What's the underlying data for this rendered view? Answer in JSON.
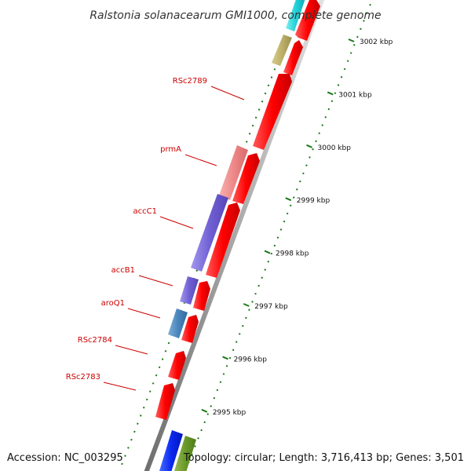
{
  "title": "Ralstonia solanacearum GMI1000, complete genome",
  "footer": {
    "accession": "Accession: NC_003295",
    "topology": "Topology: circular; Length: 3,716,413 bp; Genes: 3,501"
  },
  "colors": {
    "backbone": "#888888",
    "tick": "#1a7a1a",
    "label": "#cc0000",
    "forward_gene": "#ff0000"
  },
  "scale": {
    "unit": "kbp",
    "ticks": [
      {
        "label": "3002 kbp",
        "kbp": 3002
      },
      {
        "label": "3001 kbp",
        "kbp": 3001
      },
      {
        "label": "3000 kbp",
        "kbp": 3000
      },
      {
        "label": "2999 kbp",
        "kbp": 2999
      },
      {
        "label": "2998 kbp",
        "kbp": 2998
      },
      {
        "label": "2997 kbp",
        "kbp": 2997
      },
      {
        "label": "2996 kbp",
        "kbp": 2996
      },
      {
        "label": "2995 kbp",
        "kbp": 2995
      }
    ]
  },
  "gene_labels": [
    {
      "name": "RSc2789"
    },
    {
      "name": "prmA"
    },
    {
      "name": "accC1"
    },
    {
      "name": "accB1"
    },
    {
      "name": "aroQ1"
    },
    {
      "name": "RSc2784"
    },
    {
      "name": "RSc2783"
    }
  ]
}
